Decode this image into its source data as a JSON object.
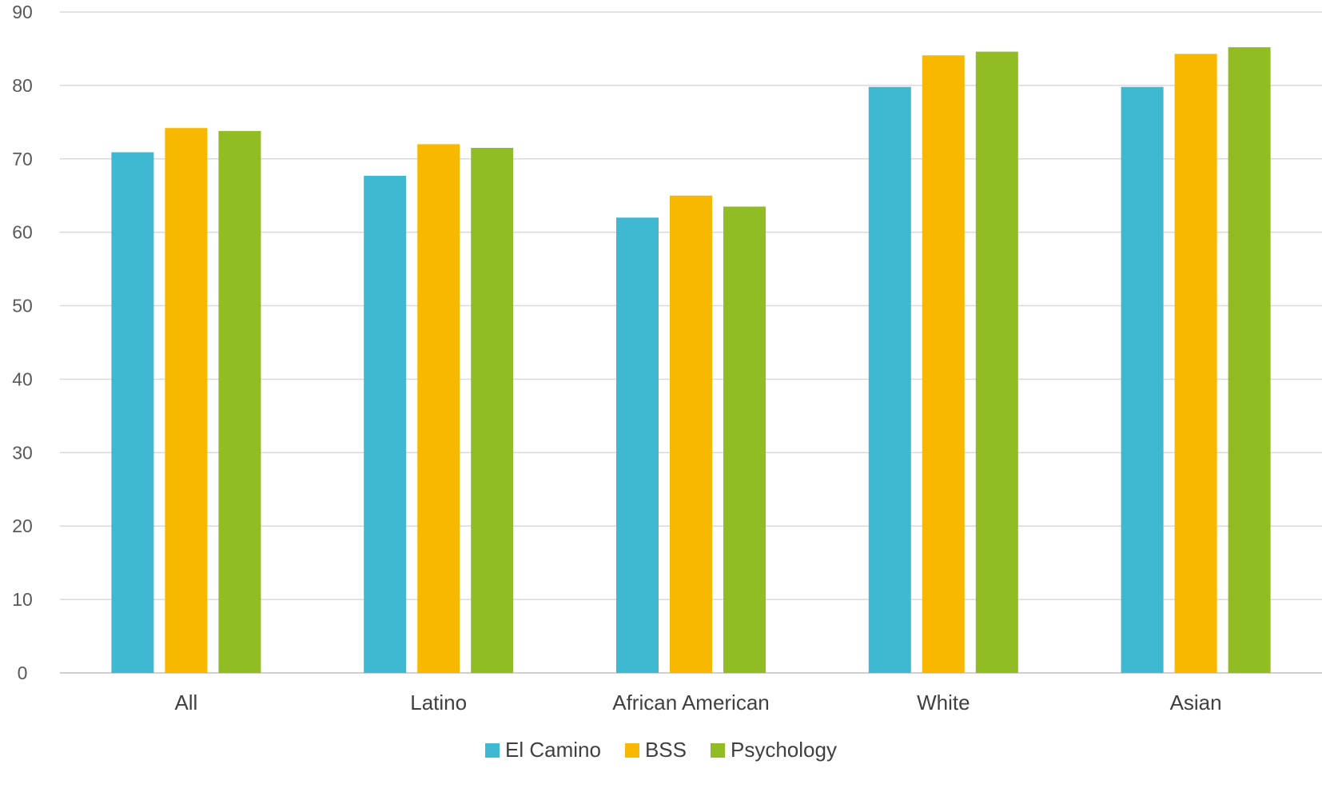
{
  "chart_data": {
    "type": "bar",
    "title": "",
    "xlabel": "",
    "ylabel": "",
    "categories": [
      "All",
      "Latino",
      "African American",
      "White",
      "Asian"
    ],
    "series": [
      {
        "name": "El Camino",
        "color": "#3fb8d2",
        "values": [
          70.9,
          67.7,
          62.0,
          79.8,
          79.8
        ]
      },
      {
        "name": "BSS",
        "color": "#f9b800",
        "values": [
          74.2,
          72.0,
          65.0,
          84.1,
          84.3
        ]
      },
      {
        "name": "Psychology",
        "color": "#92bc24",
        "values": [
          73.8,
          71.5,
          63.5,
          84.6,
          85.2
        ]
      }
    ],
    "ylim": [
      0,
      90
    ],
    "yticks": [
      0,
      10,
      20,
      30,
      40,
      50,
      60,
      70,
      80,
      90
    ],
    "grid": true,
    "legend_position": "bottom"
  }
}
